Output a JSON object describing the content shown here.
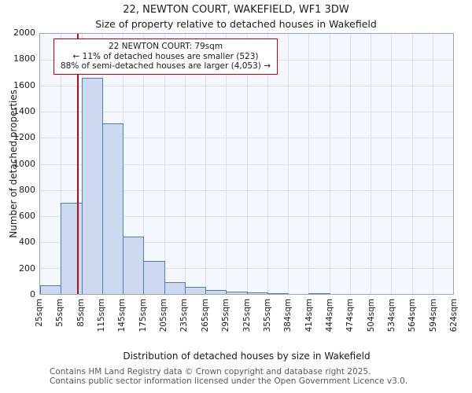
{
  "page": {
    "footer": [
      "Contains HM Land Registry data © Crown copyright and database right 2025.",
      "Contains public sector information licensed under the Open Government Licence v3.0."
    ]
  },
  "chart_data": {
    "type": "bar",
    "title": "22, NEWTON COURT, WAKEFIELD, WF1 3DW",
    "subtitle": "Size of property relative to detached houses in Wakefield",
    "xlabel": "Distribution of detached houses by size in Wakefield",
    "ylabel": "Number of detached properties",
    "ylim": [
      0,
      2000
    ],
    "ytick_step": 200,
    "grid": true,
    "x_tick_labels": [
      "25sqm",
      "55sqm",
      "85sqm",
      "115sqm",
      "145sqm",
      "175sqm",
      "205sqm",
      "235sqm",
      "265sqm",
      "295sqm",
      "325sqm",
      "355sqm",
      "384sqm",
      "414sqm",
      "444sqm",
      "474sqm",
      "504sqm",
      "534sqm",
      "564sqm",
      "594sqm",
      "624sqm"
    ],
    "bin_start_sqm": 25,
    "bin_width_sqm": 30,
    "values": [
      65,
      700,
      1660,
      1310,
      440,
      255,
      90,
      55,
      30,
      20,
      12,
      8,
      0,
      8,
      0,
      0,
      0,
      0,
      0,
      0
    ],
    "marker": {
      "value_sqm": 79,
      "annotation": [
        "22 NEWTON COURT: 79sqm",
        "← 11% of detached houses are smaller (523)",
        "88% of semi-detached houses are larger (4,053) →"
      ]
    },
    "colors": {
      "bar_fill": "#cdd9ee",
      "bar_border": "#4f7db8",
      "grid": "#d9e0ef",
      "plot_bg": "#f4f7fd",
      "marker_red": "#aa1111",
      "annotation_border": "#cc0000",
      "footer_text": "#595959"
    }
  }
}
